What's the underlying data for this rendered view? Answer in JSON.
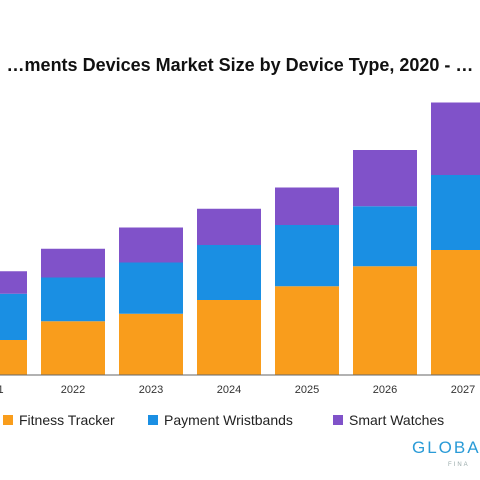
{
  "chart_data": {
    "type": "bar",
    "stacked": true,
    "title": "…ments Devices Market Size by Device Type, 2020 - …",
    "categories": [
      "…1",
      "2022",
      "2023",
      "2024",
      "2025",
      "2026",
      "2027"
    ],
    "series": [
      {
        "name": "Fitness Tracker",
        "color": "#f99d1c",
        "values": [
          28,
          43,
          49,
          60,
          71,
          87,
          100
        ]
      },
      {
        "name": "Payment Wristbands",
        "color": "#1a8fe3",
        "values": [
          37,
          35,
          41,
          44,
          49,
          48,
          60
        ]
      },
      {
        "name": "Smart Watches",
        "color": "#8052c9",
        "values": [
          18,
          23,
          28,
          29,
          30,
          45,
          58
        ]
      }
    ],
    "ylim": [
      0,
      220
    ],
    "grid": false,
    "legend_position": "bottom"
  },
  "logo": {
    "text": "GLOBA",
    "subtext": "FINA"
  }
}
